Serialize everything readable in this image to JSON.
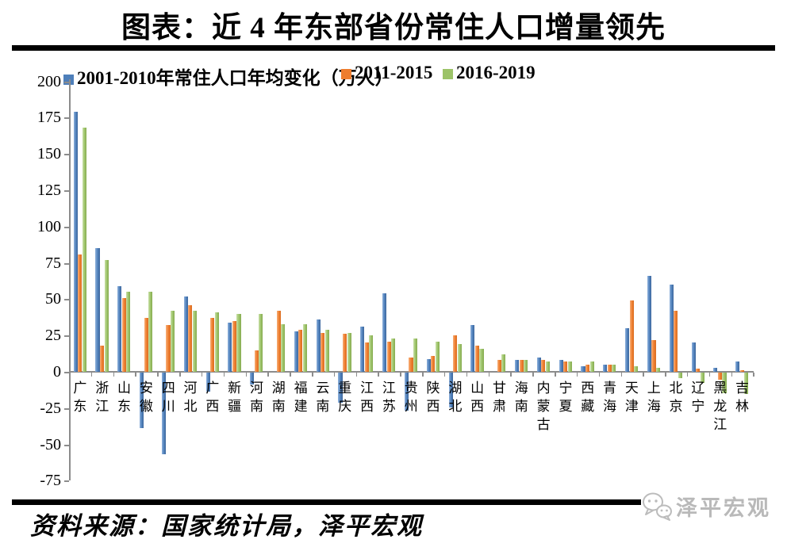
{
  "title": "图表：近 4 年东部省份常住人口增量领先",
  "source_note": "资料来源：国家统计局，泽平宏观",
  "watermark": {
    "label": "泽平宏观",
    "icon": "chat-bubbles-icon"
  },
  "chart_data": {
    "type": "bar",
    "title": "图表：近 4 年东部省份常住人口增量领先",
    "unit": "万人",
    "categories": [
      "广东",
      "浙江",
      "山东",
      "安徽",
      "四川",
      "河北",
      "广西",
      "新疆",
      "河南",
      "湖南",
      "福建",
      "云南",
      "重庆",
      "江西",
      "江苏",
      "贵州",
      "陕西",
      "湖北",
      "山西",
      "甘肃",
      "海南",
      "内蒙古",
      "宁夏",
      "西藏",
      "青海",
      "天津",
      "上海",
      "北京",
      "辽宁",
      "黑龙江",
      "吉林"
    ],
    "series": [
      {
        "name": "2001-2010年常住人口年均变化（万人）",
        "color": "#4e7fba",
        "values": [
          179,
          85,
          59,
          -38,
          -56,
          52,
          -13,
          34,
          -8,
          0,
          28,
          36,
          -21,
          31,
          54,
          -26,
          9,
          -24,
          32,
          0,
          8,
          10,
          8,
          4,
          5,
          30,
          66,
          60,
          20,
          3,
          7
        ]
      },
      {
        "name": "2011-2015",
        "color": "#ee7d2e",
        "values": [
          81,
          18,
          51,
          37,
          32,
          46,
          37,
          35,
          15,
          42,
          29,
          27,
          26,
          20,
          21,
          10,
          11,
          25,
          18,
          8,
          8,
          8,
          7,
          5,
          5,
          49,
          22,
          42,
          2,
          -5,
          1
        ]
      },
      {
        "name": "2016-2019",
        "color": "#9cc368",
        "values": [
          168,
          77,
          55,
          55,
          42,
          42,
          41,
          40,
          40,
          33,
          33,
          29,
          27,
          25,
          23,
          23,
          21,
          19,
          16,
          12,
          8,
          7,
          7,
          7,
          5,
          4,
          3,
          -4,
          -7,
          -14,
          -15
        ]
      }
    ],
    "ylim": [
      -75,
      200
    ],
    "yticks": [
      200,
      175,
      150,
      125,
      100,
      75,
      50,
      25,
      0,
      -25,
      -50,
      -75
    ],
    "xlabel": "",
    "ylabel": "",
    "grid": false,
    "legend_position": "top"
  }
}
